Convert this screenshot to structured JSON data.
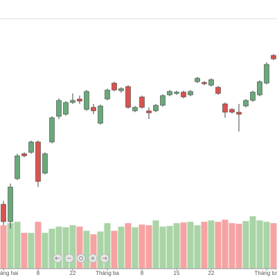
{
  "chart_data": {
    "type": "candlestick",
    "x": [
      0,
      1,
      2,
      3,
      4,
      5,
      6,
      7,
      8,
      9,
      10,
      11,
      12,
      13,
      14,
      15,
      16,
      17,
      18,
      19,
      20,
      21,
      22,
      23,
      24,
      25,
      26,
      27,
      28,
      29,
      30,
      31,
      32,
      33,
      34,
      35,
      36,
      37,
      38,
      39
    ],
    "open": [
      105,
      80,
      142,
      178,
      180,
      195,
      150,
      195,
      232,
      235,
      252,
      257,
      242,
      245,
      222,
      257,
      280,
      269,
      275,
      240,
      260,
      240,
      240,
      248,
      263,
      265,
      267,
      263,
      282,
      281,
      277,
      274,
      250,
      242,
      238,
      247,
      255,
      263,
      280,
      320
    ],
    "high": [
      110,
      135,
      178,
      180,
      197,
      197,
      180,
      232,
      258,
      254,
      265,
      262,
      270,
      250,
      249,
      272,
      282,
      274,
      277,
      247,
      262,
      245,
      250,
      264,
      270,
      269,
      269,
      270,
      289,
      283,
      287,
      276,
      252,
      244,
      250,
      257,
      269,
      284,
      310,
      322
    ],
    "low": [
      75,
      70,
      140,
      173,
      178,
      130,
      148,
      193,
      228,
      233,
      250,
      250,
      240,
      235,
      220,
      255,
      268,
      266,
      243,
      238,
      243,
      228,
      238,
      246,
      261,
      263,
      258,
      261,
      280,
      277,
      275,
      263,
      230,
      236,
      210,
      245,
      253,
      261,
      278,
      313
    ],
    "close": [
      80,
      130,
      175,
      175,
      195,
      138,
      178,
      230,
      255,
      252,
      255,
      254,
      268,
      240,
      247,
      270,
      270,
      272,
      245,
      245,
      245,
      237,
      248,
      262,
      268,
      267,
      260,
      268,
      287,
      279,
      285,
      265,
      238,
      238,
      235,
      255,
      267,
      282,
      307,
      315
    ],
    "volume": [
      63,
      66,
      68,
      52,
      52,
      68,
      52,
      58,
      61,
      60,
      63,
      61,
      55,
      50,
      54,
      66,
      55,
      61,
      66,
      60,
      64,
      63,
      70,
      61,
      62,
      66,
      67,
      68,
      63,
      68,
      70,
      68,
      71,
      66,
      65,
      69,
      76,
      70,
      68,
      66
    ],
    "up_color": "#6aa97a",
    "down_color": "#d9534f",
    "volume_up_color": "#a9d4a6",
    "volume_down_color": "#f5a3a3",
    "xlim": [
      -0.5,
      39.5
    ],
    "ylim": [
      0,
      400
    ],
    "volume_ylim": [
      0,
      388
    ],
    "xticks": [
      {
        "value": 0,
        "label": "áng hai"
      },
      {
        "value": 5,
        "label": "8"
      },
      {
        "value": 10,
        "label": "22"
      },
      {
        "value": 15,
        "label": "Tháng ba"
      },
      {
        "value": 20,
        "label": "8"
      },
      {
        "value": 25,
        "label": "15"
      },
      {
        "value": 30,
        "label": "22"
      },
      {
        "value": 38,
        "label": "Tháng tư"
      }
    ]
  }
}
